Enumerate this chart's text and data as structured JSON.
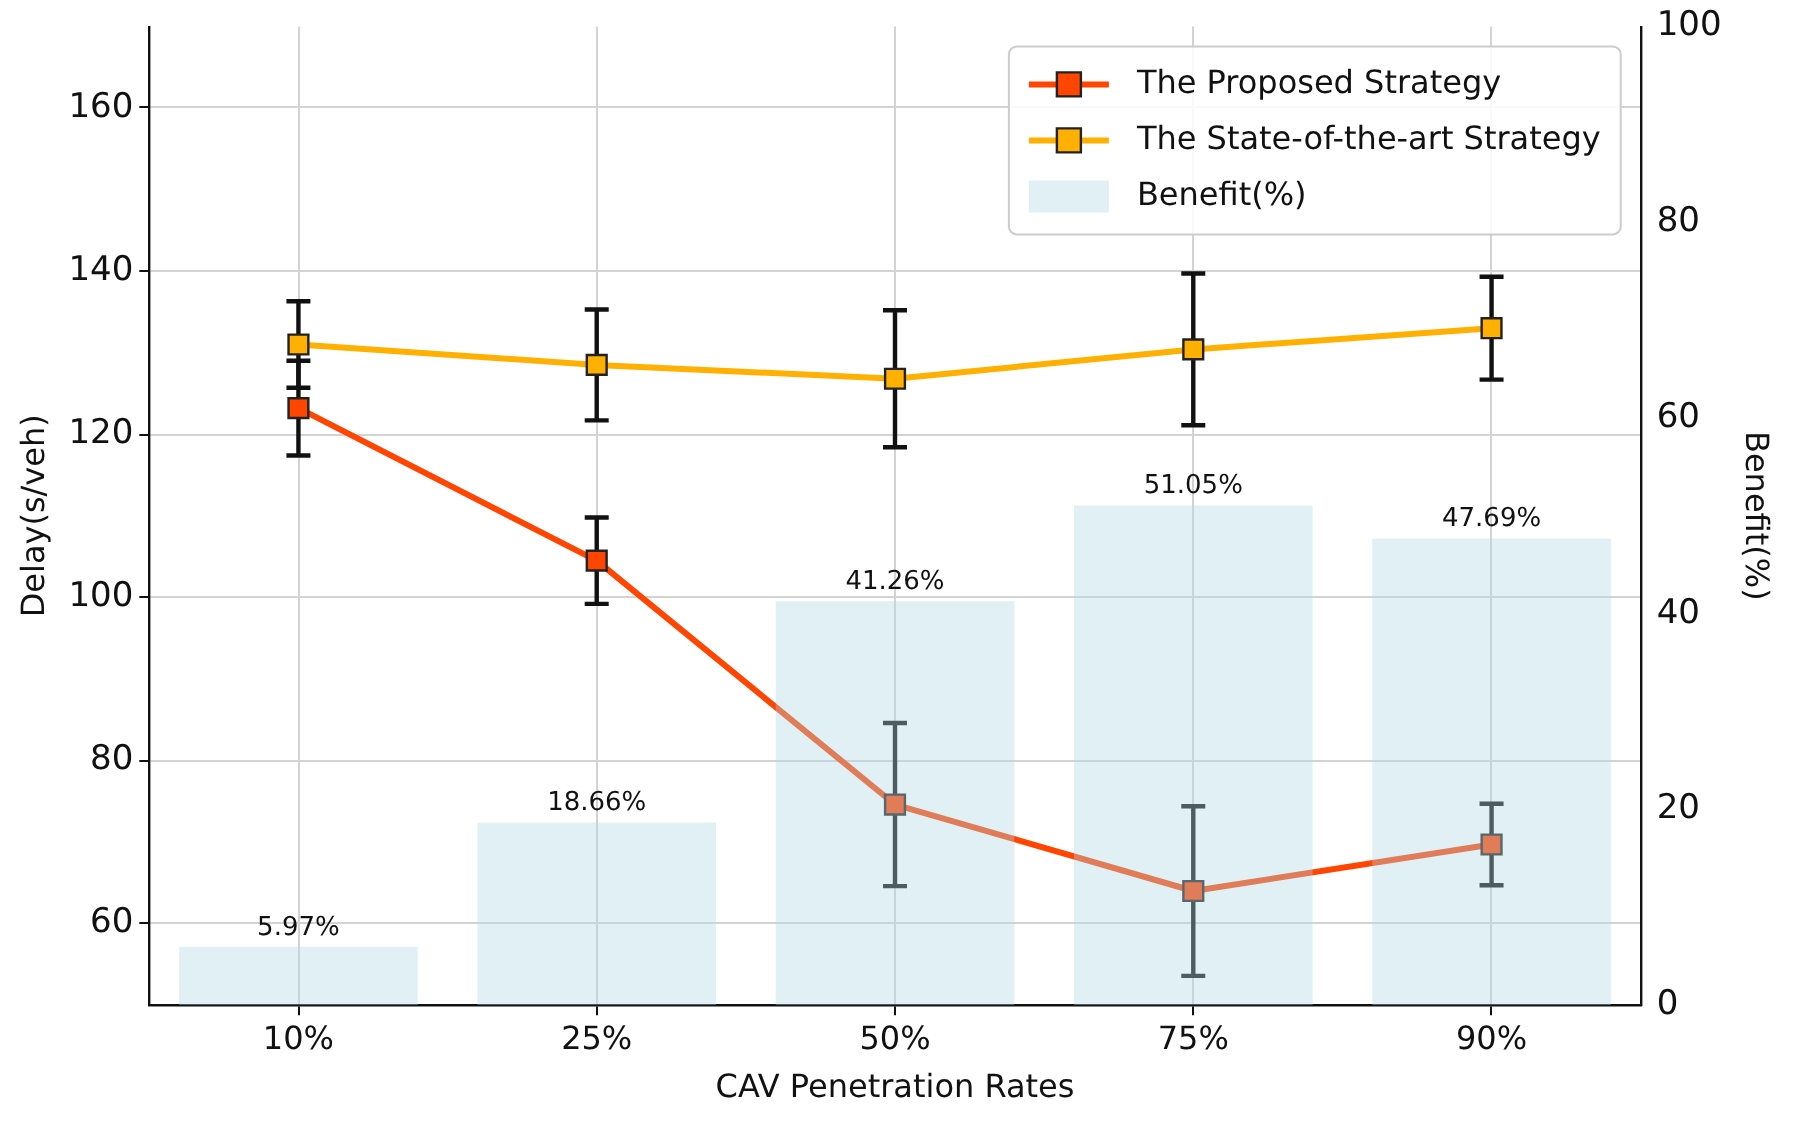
{
  "chart_data": {
    "type": "line",
    "xlabel": "CAV Penetration Rates",
    "ylabel": "Delay(s/veh)",
    "y2label": "Benefit(%)",
    "categories": [
      "10%",
      "25%",
      "50%",
      "75%",
      "90%"
    ],
    "ylim": [
      50,
      170
    ],
    "yticks": [
      60,
      80,
      100,
      120,
      140,
      160
    ],
    "y2lim": [
      0,
      100
    ],
    "y2ticks": [
      0,
      20,
      40,
      60,
      80,
      100
    ],
    "grid": true,
    "legend": "top right",
    "marker": "square",
    "series": [
      {
        "name": "The Proposed Strategy",
        "color": "#ff4500",
        "values": [
          123.2,
          104.5,
          74.6,
          64,
          69.7
        ],
        "errors": [
          5.8,
          5.3,
          10,
          10.4,
          5
        ]
      },
      {
        "name": "The State-of-the-art Strategy",
        "color": "#ffb000",
        "values": [
          131,
          128.5,
          126.8,
          130.4,
          133
        ],
        "errors": [
          5.3,
          6.8,
          8.4,
          9.3,
          6.3
        ]
      },
      {
        "name": "Benefit(%)",
        "type": "bar",
        "axis": "y2",
        "color": "#add8e6",
        "values": [
          5.97,
          18.66,
          41.26,
          51.05,
          47.69
        ],
        "value_labels": [
          "5.97%",
          "18.66%",
          "41.26%",
          "51.05%",
          "47.69%"
        ]
      }
    ]
  }
}
